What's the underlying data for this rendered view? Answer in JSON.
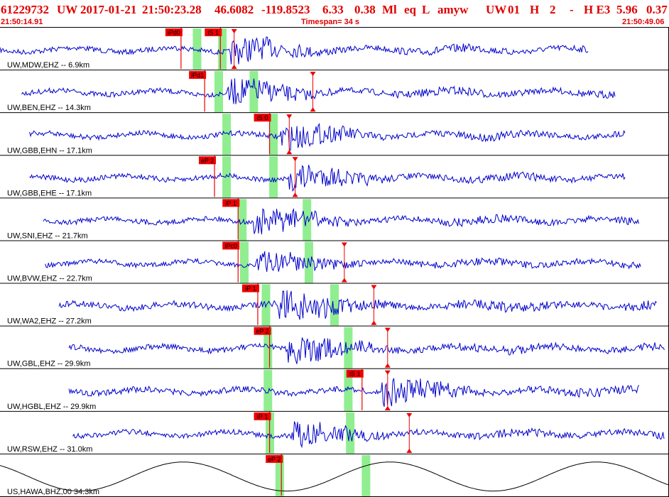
{
  "header": {
    "event_id": "61229732",
    "network": "UW",
    "date": "2017-01-21",
    "time": "21:50:23.28",
    "lat": "46.6082",
    "lon": "-119.8523",
    "depth": "6.33",
    "magnitude": "0.38",
    "mag_type": "Ml",
    "event_type": "eq",
    "gtype": "L",
    "source": "amyw",
    "auth": "UW",
    "version": "01",
    "h_flag": "H",
    "phases": "2",
    "dash": "-",
    "quality": "H E3",
    "extra1": "5.96",
    "extra2": "0.37"
  },
  "timebar": {
    "start": "21:50:14.91",
    "timespan": "Timespan=  34 s",
    "end": "21:50:49.06"
  },
  "colors": {
    "header_text": "#e00000",
    "trace": "#0000cc",
    "pick_flag": "#ee0000",
    "window": "#90ee90",
    "border": "#000000"
  },
  "chart_data": {
    "type": "seismogram",
    "time_range_s": [
      0,
      34
    ],
    "channels": [
      {
        "label": "UW,MDW,EHZ -- 6.9km",
        "trace_span_s": [
          0.0,
          29.9
        ],
        "green_s": [
          9.8,
          11.3
        ],
        "onset_s": 11.7,
        "amplitude": 0.8,
        "picks": [
          {
            "label": "iPd0",
            "t_s": 9.2
          },
          {
            "label": "iS 1",
            "t_s": 11.2
          }
        ],
        "markers_s": [
          11.9
        ]
      },
      {
        "label": "UW,BEN,EHZ -- 14.3km",
        "trace_span_s": [
          1.1,
          31.3
        ],
        "green_s": [
          10.9,
          12.9
        ],
        "onset_s": 11.6,
        "amplitude": 0.8,
        "picks": [
          {
            "label": "iPd1",
            "t_s": 10.4
          }
        ],
        "markers_s": [
          15.9
        ]
      },
      {
        "label": "UW,GBB,EHN -- 17.1km",
        "trace_span_s": [
          1.5,
          31.8
        ],
        "green_s": [
          11.3,
          13.9
        ],
        "onset_s": 14.2,
        "amplitude": 0.8,
        "picks": [
          {
            "label": "iS 0",
            "t_s": 13.7
          }
        ],
        "markers_s": [
          14.7
        ]
      },
      {
        "label": "UW,GBB,EHE -- 17.1km",
        "trace_span_s": [
          1.5,
          31.8
        ],
        "green_s": [
          11.3,
          13.9
        ],
        "onset_s": 14.7,
        "amplitude": 0.8,
        "picks": [
          {
            "label": "eP 2",
            "t_s": 10.9
          }
        ],
        "markers_s": [
          15.0
        ]
      },
      {
        "label": "UW,SNI,EHZ -- 21.7km",
        "trace_span_s": [
          2.2,
          32.5
        ],
        "green_s": [
          12.1,
          15.6
        ],
        "onset_s": 12.9,
        "amplitude": 0.8,
        "picks": [
          {
            "label": "iP 1",
            "t_s": 12.1
          }
        ],
        "markers_s": []
      },
      {
        "label": "UW,BVW,EHZ -- 22.7km",
        "trace_span_s": [
          2.3,
          32.6
        ],
        "green_s": [
          12.2,
          15.7
        ],
        "onset_s": 13.0,
        "amplitude": 0.75,
        "picks": [
          {
            "label": "iPc0",
            "t_s": 12.1
          }
        ],
        "markers_s": [
          17.5
        ]
      },
      {
        "label": "UW,WA2,EHZ -- 27.2km",
        "trace_span_s": [
          3.0,
          33.4
        ],
        "green_s": [
          13.3,
          17.0
        ],
        "onset_s": 14.1,
        "amplitude": 0.95,
        "picks": [
          {
            "label": "iP 1",
            "t_s": 13.1
          }
        ],
        "markers_s": [
          19.0
        ]
      },
      {
        "label": "UW,GBL,EHZ -- 29.9km",
        "trace_span_s": [
          3.5,
          33.8
        ],
        "green_s": [
          13.4,
          17.7
        ],
        "onset_s": 14.6,
        "amplitude": 0.85,
        "picks": [
          {
            "label": "eP 2",
            "t_s": 13.7
          }
        ],
        "markers_s": [
          19.7
        ]
      },
      {
        "label": "UW,HGBL,EHZ -- 29.9km",
        "trace_span_s": [
          3.5,
          32.5
        ],
        "green_s": [
          13.4,
          17.7
        ],
        "onset_s": 19.4,
        "amplitude": 0.9,
        "picks": [
          {
            "label": "iS 1",
            "t_s": 18.4
          }
        ],
        "markers_s": [
          19.7
        ]
      },
      {
        "label": "UW,RSW,EHZ -- 31.0km",
        "trace_span_s": [
          3.7,
          33.8
        ],
        "green_s": [
          13.5,
          17.8
        ],
        "onset_s": 14.7,
        "amplitude": 0.8,
        "picks": [
          {
            "label": "iP 1",
            "t_s": 13.7
          }
        ],
        "markers_s": [
          20.8
        ]
      },
      {
        "label": "US,HAWA,BHZ,00 34.3km",
        "trace_span_s": [
          0.0,
          34.0
        ],
        "green_s": [
          14.0,
          18.6
        ],
        "onset_s": null,
        "amplitude": 0.9,
        "picks": [
          {
            "label": "eP 2",
            "t_s": 14.3
          }
        ],
        "markers_s": [],
        "long_period": true
      }
    ]
  }
}
